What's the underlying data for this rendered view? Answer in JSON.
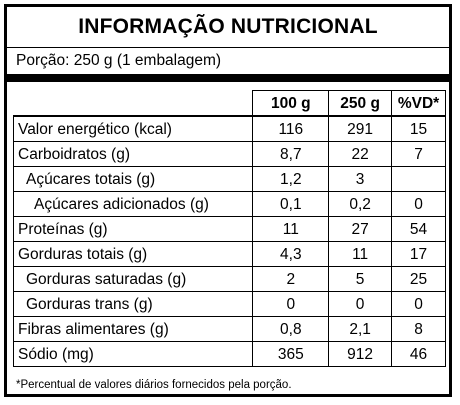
{
  "title": "INFORMAÇÃO NUTRICIONAL",
  "portion": "Porção: 250 g (1 embalagem)",
  "columns": [
    "100 g",
    "250 g",
    "%VD*"
  ],
  "rows": [
    {
      "name": "Valor energético (kcal)",
      "v100": "116",
      "v250": "291",
      "vd": "15"
    },
    {
      "name": "Carboidratos (g)",
      "v100": "8,7",
      "v250": "22",
      "vd": "7"
    },
    {
      "name": "Açúcares totais (g)",
      "v100": "1,2",
      "v250": "3",
      "vd": ""
    },
    {
      "name": "Açúcares adicionados (g)",
      "v100": "0,1",
      "v250": "0,2",
      "vd": "0"
    },
    {
      "name": "Proteínas (g)",
      "v100": "11",
      "v250": "27",
      "vd": "54"
    },
    {
      "name": "Gorduras totais (g)",
      "v100": "4,3",
      "v250": "11",
      "vd": "17"
    },
    {
      "name": "Gorduras saturadas (g)",
      "v100": "2",
      "v250": "5",
      "vd": "25"
    },
    {
      "name": "Gorduras trans (g)",
      "v100": "0",
      "v250": "0",
      "vd": "0"
    },
    {
      "name": "Fibras alimentares (g)",
      "v100": "0,8",
      "v250": "2,1",
      "vd": "8"
    },
    {
      "name": "Sódio (mg)",
      "v100": "365",
      "v250": "912",
      "vd": "46"
    }
  ],
  "footnote": "*Percentual de valores diários fornecidos pela porção."
}
